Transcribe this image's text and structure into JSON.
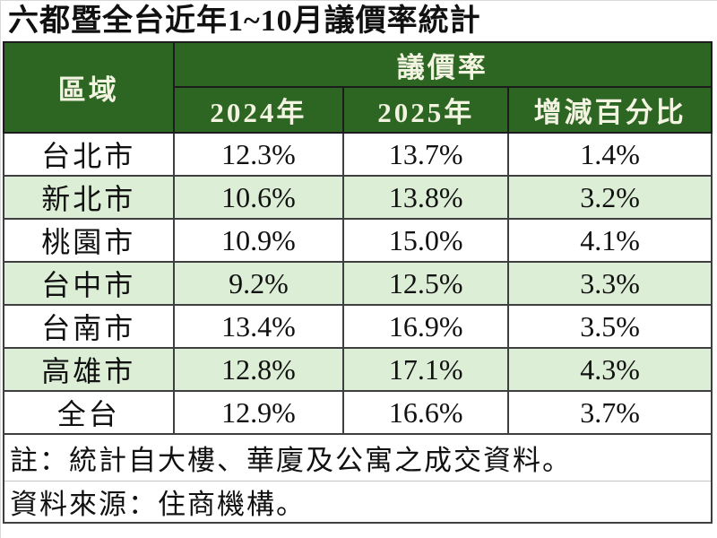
{
  "title": "六都暨全台近年1~10月議價率統計",
  "table": {
    "region_header": "區域",
    "group_header": "議價率",
    "col_headers": [
      "2024年",
      "2025年",
      "增減百分比"
    ],
    "rows": [
      {
        "region": "台北市",
        "y2024": "12.3%",
        "y2025": "13.7%",
        "diff": "1.4%"
      },
      {
        "region": "新北市",
        "y2024": "10.6%",
        "y2025": "13.8%",
        "diff": "3.2%"
      },
      {
        "region": "桃園市",
        "y2024": "10.9%",
        "y2025": "15.0%",
        "diff": "4.1%"
      },
      {
        "region": "台中市",
        "y2024": "9.2%",
        "y2025": "12.5%",
        "diff": "3.3%"
      },
      {
        "region": "台南市",
        "y2024": "13.4%",
        "y2025": "16.9%",
        "diff": "3.5%"
      },
      {
        "region": "高雄市",
        "y2024": "12.8%",
        "y2025": "17.1%",
        "diff": "4.3%"
      },
      {
        "region": "全台",
        "y2024": "12.9%",
        "y2025": "16.6%",
        "diff": "3.7%"
      }
    ]
  },
  "notes": {
    "note1": "註：統計自大樓、華廈及公寓之成交資料。",
    "note2": "資料來源：住商機構。"
  },
  "colors": {
    "header_bg": "#2d6522",
    "header_text": "#f2f3e1",
    "row_alt_bg": "#ddeed6",
    "grid": "#3f3f3f"
  },
  "chart_data": {
    "type": "table",
    "title": "六都暨全台近年1~10月議價率統計",
    "columns": [
      "區域",
      "2024年議價率",
      "2025年議價率",
      "增減百分比"
    ],
    "categories": [
      "台北市",
      "新北市",
      "桃園市",
      "台中市",
      "台南市",
      "高雄市",
      "全台"
    ],
    "series": [
      {
        "name": "2024年",
        "unit": "%",
        "values": [
          12.3,
          10.6,
          10.9,
          9.2,
          13.4,
          12.8,
          12.9
        ]
      },
      {
        "name": "2025年",
        "unit": "%",
        "values": [
          13.7,
          13.8,
          15.0,
          12.5,
          16.9,
          17.1,
          16.6
        ]
      },
      {
        "name": "增減百分比",
        "unit": "%",
        "values": [
          1.4,
          3.2,
          4.1,
          3.3,
          3.5,
          4.3,
          3.7
        ]
      }
    ],
    "notes": [
      "註：統計自大樓、華廈及公寓之成交資料。",
      "資料來源：住商機構。"
    ]
  }
}
